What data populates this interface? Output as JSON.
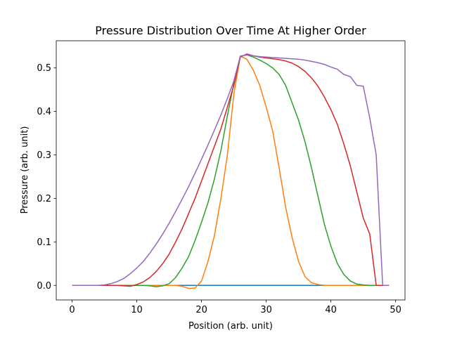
{
  "chart_data": {
    "type": "line",
    "title": "Pressure Distribution Over Time At Higher Order",
    "xlabel": "Position (arb. unit)",
    "ylabel": "Pressure (arb. unit)",
    "xlim": [
      -2.45,
      51.45
    ],
    "ylim": [
      -0.0335,
      0.5625
    ],
    "xticks": [
      0,
      10,
      20,
      30,
      40,
      50
    ],
    "xtick_labels": [
      "0",
      "10",
      "20",
      "30",
      "40",
      "50"
    ],
    "yticks": [
      0.0,
      0.1,
      0.2,
      0.3,
      0.4,
      0.5
    ],
    "ytick_labels": [
      "0.0",
      "0.1",
      "0.2",
      "0.3",
      "0.4",
      "0.5"
    ],
    "grid": false,
    "x": [
      0,
      1,
      2,
      3,
      4,
      5,
      6,
      7,
      8,
      9,
      10,
      11,
      12,
      13,
      14,
      15,
      16,
      17,
      18,
      19,
      20,
      21,
      22,
      23,
      24,
      25,
      26,
      27,
      28,
      29,
      30,
      31,
      32,
      33,
      34,
      35,
      36,
      37,
      38,
      39,
      40,
      41,
      42,
      43,
      44,
      45,
      46,
      47,
      48,
      49
    ],
    "series": [
      {
        "color": "#1f77b4",
        "values": [
          0,
          0,
          0,
          0,
          0,
          0,
          0,
          0,
          0,
          0,
          0,
          0,
          0,
          0,
          0,
          0,
          0,
          0,
          0,
          0,
          0,
          0,
          0,
          0,
          0,
          0,
          0,
          0,
          0,
          0,
          0,
          0,
          0,
          0,
          0,
          0,
          0,
          0,
          0,
          0,
          0,
          0,
          0,
          0,
          0,
          0,
          0,
          0,
          0,
          0
        ]
      },
      {
        "color": "#ff7f0e",
        "values": [
          0,
          0,
          0,
          0,
          0,
          0,
          0,
          0,
          0,
          0,
          0,
          0,
          0,
          0,
          0,
          0,
          0,
          -0.002,
          -0.007,
          -0.006,
          0.01,
          0.055,
          0.115,
          0.2,
          0.3,
          0.44,
          0.527,
          0.52,
          0.495,
          0.46,
          0.41,
          0.355,
          0.27,
          0.18,
          0.11,
          0.055,
          0.02,
          0.006,
          0.002,
          0,
          0,
          0,
          0,
          0,
          0,
          0,
          0,
          0,
          0,
          0
        ]
      },
      {
        "color": "#2ca02c",
        "values": [
          0,
          0,
          0,
          0,
          0,
          0,
          0,
          0,
          0,
          0,
          0,
          0,
          -0.001,
          -0.003,
          -0.001,
          0.004,
          0.018,
          0.04,
          0.066,
          0.103,
          0.145,
          0.19,
          0.245,
          0.31,
          0.39,
          0.465,
          0.527,
          0.53,
          0.525,
          0.518,
          0.51,
          0.5,
          0.485,
          0.46,
          0.42,
          0.38,
          0.33,
          0.27,
          0.205,
          0.14,
          0.09,
          0.05,
          0.025,
          0.01,
          0.003,
          0.001,
          0,
          0,
          0,
          0
        ]
      },
      {
        "color": "#d62728",
        "values": [
          0,
          0,
          0,
          0,
          0,
          0,
          0,
          0,
          -0.001,
          -0.002,
          0.002,
          0.008,
          0.018,
          0.032,
          0.05,
          0.072,
          0.1,
          0.13,
          0.165,
          0.2,
          0.24,
          0.28,
          0.32,
          0.36,
          0.41,
          0.46,
          0.525,
          0.532,
          0.528,
          0.525,
          0.523,
          0.521,
          0.519,
          0.516,
          0.511,
          0.503,
          0.492,
          0.477,
          0.458,
          0.433,
          0.404,
          0.37,
          0.325,
          0.275,
          0.215,
          0.155,
          0.118,
          0,
          0,
          0
        ]
      },
      {
        "color": "#9467bd",
        "values": [
          0,
          0,
          0,
          0,
          0,
          0.001,
          0.004,
          0.009,
          0.016,
          0.027,
          0.04,
          0.055,
          0.074,
          0.095,
          0.118,
          0.143,
          0.17,
          0.198,
          0.227,
          0.258,
          0.29,
          0.323,
          0.357,
          0.392,
          0.43,
          0.47,
          0.527,
          0.53,
          0.528,
          0.526,
          0.525,
          0.524,
          0.523,
          0.522,
          0.521,
          0.52,
          0.518,
          0.515,
          0.512,
          0.508,
          0.502,
          0.497,
          0.485,
          0.48,
          0.46,
          0.458,
          0.385,
          0.3,
          0,
          0
        ]
      }
    ]
  }
}
